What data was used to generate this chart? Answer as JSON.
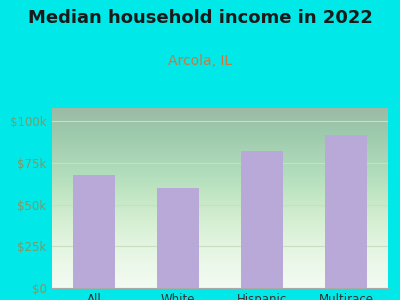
{
  "title": "Median household income in 2022",
  "subtitle": "Arcola, IL",
  "categories": [
    "All",
    "White",
    "Hispanic",
    "Multirace"
  ],
  "values": [
    68000,
    60000,
    82000,
    92000
  ],
  "bar_color": "#b8a9d9",
  "title_color": "#1a1a1a",
  "subtitle_color": "#c87941",
  "ytick_color": "#7a9a6a",
  "xtick_color": "#333333",
  "background_outer": "#00e8e8",
  "chart_bg_top": "#d8f0d0",
  "chart_bg_bottom": "#f0faf0",
  "ylim": [
    0,
    108000
  ],
  "yticks": [
    0,
    25000,
    50000,
    75000,
    100000
  ],
  "ytick_labels": [
    "$0",
    "$25k",
    "$50k",
    "$75k",
    "$100k"
  ],
  "grid_color": "#c8e0c0",
  "title_fontsize": 13,
  "subtitle_fontsize": 10,
  "tick_fontsize": 8.5
}
